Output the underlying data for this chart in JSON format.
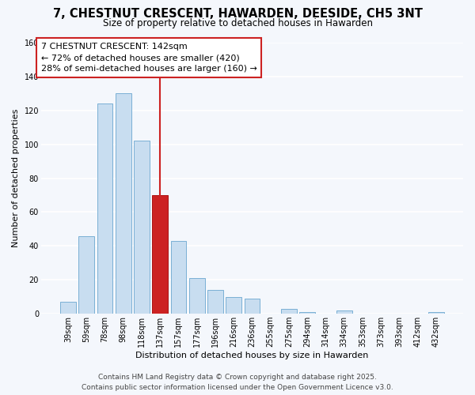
{
  "title": "7, CHESTNUT CRESCENT, HAWARDEN, DEESIDE, CH5 3NT",
  "subtitle": "Size of property relative to detached houses in Hawarden",
  "xlabel": "Distribution of detached houses by size in Hawarden",
  "ylabel": "Number of detached properties",
  "bar_labels": [
    "39sqm",
    "59sqm",
    "78sqm",
    "98sqm",
    "118sqm",
    "137sqm",
    "157sqm",
    "177sqm",
    "196sqm",
    "216sqm",
    "236sqm",
    "255sqm",
    "275sqm",
    "294sqm",
    "314sqm",
    "334sqm",
    "353sqm",
    "373sqm",
    "393sqm",
    "412sqm",
    "432sqm"
  ],
  "bar_values": [
    7,
    46,
    124,
    130,
    102,
    70,
    43,
    21,
    14,
    10,
    9,
    0,
    3,
    1,
    0,
    2,
    0,
    0,
    0,
    0,
    1
  ],
  "bar_color": "#c8ddf0",
  "bar_edge_color": "#7ab0d4",
  "highlight_bar_index": 5,
  "highlight_bar_color": "#cc2222",
  "highlight_bar_edge_color": "#aa1111",
  "vline_color": "#cc2222",
  "ylim": [
    0,
    160
  ],
  "yticks": [
    0,
    20,
    40,
    60,
    80,
    100,
    120,
    140,
    160
  ],
  "annotation_title": "7 CHESTNUT CRESCENT: 142sqm",
  "annotation_line1": "← 72% of detached houses are smaller (420)",
  "annotation_line2": "28% of semi-detached houses are larger (160) →",
  "annotation_box_color": "#ffffff",
  "annotation_box_edge_color": "#cc2222",
  "footer_line1": "Contains HM Land Registry data © Crown copyright and database right 2025.",
  "footer_line2": "Contains public sector information licensed under the Open Government Licence v3.0.",
  "bg_color": "#f4f7fc",
  "grid_color": "#ffffff",
  "title_fontsize": 10.5,
  "subtitle_fontsize": 8.5,
  "axis_label_fontsize": 8,
  "tick_fontsize": 7,
  "annotation_fontsize": 8,
  "footer_fontsize": 6.5
}
